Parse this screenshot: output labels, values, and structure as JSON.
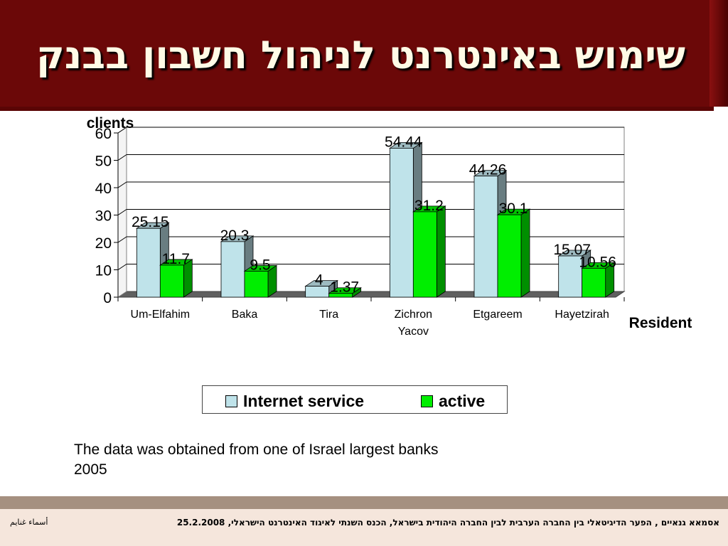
{
  "header": {
    "title": "שימוש באינטרנט לניהול חשבון בבנק"
  },
  "chart_data": {
    "type": "bar",
    "ylabel": "clients",
    "xlabel": "Resident",
    "ylim": [
      0,
      60
    ],
    "yticks": [
      0,
      10,
      20,
      30,
      40,
      50,
      60
    ],
    "categories": [
      "Um-Elfahim",
      "Baka",
      "Tira",
      "Zichron Yacov",
      "Etgareem",
      "Hayetzirah"
    ],
    "series": [
      {
        "name": "Internet service",
        "values": [
          25.15,
          20.3,
          4,
          54.44,
          44.26,
          15.07
        ],
        "color": "#bfe3ea",
        "labels": [
          "25.15",
          "20.3",
          "4",
          "54.44",
          "44.26",
          "15.07"
        ]
      },
      {
        "name": "active",
        "values": [
          11.7,
          9.5,
          1.37,
          31.2,
          30.1,
          10.56
        ],
        "color": "#00ee00",
        "labels": [
          "11.7",
          "9.5",
          "1.37",
          "31.2",
          "30.1",
          "10.56"
        ]
      }
    ],
    "grid": true,
    "legend_position": "bottom"
  },
  "note": {
    "line1": "The data was obtained from one of Israel largest banks",
    "line2": "2005"
  },
  "footer": {
    "text": "אסמאא גנאיים , הפער הדיגיטאלי בין החברה הערבית לבין החברה היהודית בישראל, הכנס השנתי לאיגוד האינטרנט הישראלי, 25.2.2008",
    "side": "أسماء غنايم"
  }
}
